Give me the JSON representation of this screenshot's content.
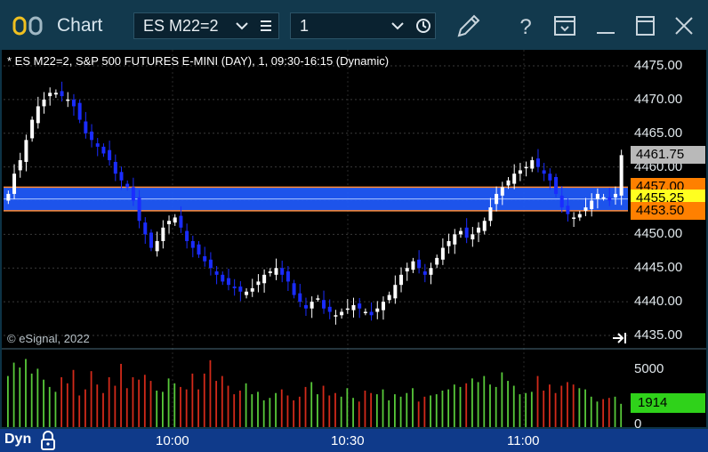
{
  "window": {
    "title": "Chart",
    "symbol": "ES M22=2",
    "interval": "1",
    "icons": [
      "app-icon",
      "chevron-down-icon",
      "menu-icon",
      "chevron-down-icon",
      "clock-icon",
      "pencil-icon",
      "help-icon",
      "window-icon",
      "minimize-icon",
      "maximize-icon",
      "close-icon"
    ]
  },
  "chart_header": "* ES M22=2, S&P 500 FUTURES E-MINI (DAY), 1, 09:30-16:15 (Dynamic)",
  "copyright": "© eSignal, 2022",
  "footer": {
    "dyn": "Dyn"
  },
  "price_axis": {
    "ticks": [
      "4475.00",
      "4470.00",
      "4465.00",
      "4460.00",
      "4455.00",
      "4450.00",
      "4445.00",
      "4440.00",
      "4435.00"
    ],
    "tags": [
      {
        "label": "4461.75",
        "bg": "#b9b9b9",
        "fg": "#000000"
      },
      {
        "label": "4457.00",
        "bg": "#ff8000",
        "fg": "#000000"
      },
      {
        "label": "4455.25",
        "bg": "#ffff20",
        "fg": "#000000"
      },
      {
        "label": "4453.50",
        "bg": "#ff8000",
        "fg": "#000000"
      }
    ]
  },
  "volume_axis": {
    "ticks": [
      "5000",
      "0"
    ],
    "last": "1914"
  },
  "time_axis": {
    "ticks": [
      "10:00",
      "10:30",
      "11:00"
    ]
  },
  "colors": {
    "up": "#ffffff",
    "down": "#1a2cff",
    "band": "#1f5bff",
    "band_edge": "#ff8c3a",
    "vol_up": "#58c93a",
    "vol_down": "#d22a1a"
  },
  "chart_data": {
    "type": "candlestick",
    "ylim": [
      4434,
      4476
    ],
    "band": {
      "upper": 4457.0,
      "mid": 4455.25,
      "lower": 4453.5
    },
    "close_series": [
      4456,
      4459,
      4461,
      4464,
      4467,
      4469,
      4470,
      4471,
      4471,
      4470.5,
      4470,
      4469,
      4467,
      4465,
      4464,
      4463,
      4462,
      4461,
      4459,
      4458,
      4457,
      4455,
      4452,
      4450,
      4448,
      4449,
      4451,
      4452,
      4452.5,
      4451,
      4449,
      4448,
      4447,
      4446,
      4445,
      4444,
      4443,
      4442.5,
      4442,
      4441.5,
      4441.5,
      4442,
      4443,
      4444,
      4444.5,
      4445,
      4444,
      4443,
      4441,
      4440,
      4439,
      4440,
      4440.5,
      4439,
      4438.5,
      4438,
      4438.5,
      4439,
      4439.5,
      4439,
      4438.5,
      4438,
      4439,
      4440,
      4441,
      4442.5,
      4444,
      4445,
      4446,
      4445,
      4444,
      4445,
      4446.5,
      4448,
      4449,
      4450,
      4450.5,
      4449.5,
      4450,
      4451,
      4452,
      4454,
      4456,
      4457,
      4458,
      4459,
      4459.5,
      4460,
      4461,
      4460,
      4459,
      4458,
      4456,
      4454,
      4453,
      4452.5,
      4453,
      4454,
      4455,
      4456,
      4455.5,
      4455,
      4456,
      4461.75
    ],
    "volume_max": 6000,
    "volumes": [
      4200,
      5300,
      4900,
      5600,
      4400,
      4800,
      3900,
      3300,
      2900,
      4100,
      3600,
      4700,
      2600,
      3100,
      4600,
      3500,
      2800,
      4100,
      3400,
      5200,
      3200,
      4100,
      3900,
      4300,
      3800,
      3000,
      2900,
      4000,
      3600,
      3300,
      3100,
      4400,
      3100,
      4400,
      5500,
      3800,
      4200,
      3400,
      2700,
      3000,
      3600,
      2700,
      2900,
      2200,
      2400,
      2800,
      3100,
      2600,
      2200,
      2500,
      3300,
      3700,
      2700,
      3400,
      2600,
      2800,
      2500,
      3200,
      2400,
      2100,
      3000,
      2800,
      2700,
      3100,
      2200,
      2700,
      2500,
      2800,
      3200,
      2100,
      2500,
      2600,
      2700,
      3000,
      3100,
      3500,
      3300,
      3600,
      4000,
      3700,
      4200,
      3500,
      3300,
      4500,
      3800,
      3400,
      2700,
      2800,
      2900,
      4200,
      3000,
      3500,
      2800,
      3400,
      3700,
      3500,
      3200,
      3100,
      2500,
      2100,
      2300,
      2400,
      2500,
      1914
    ]
  }
}
